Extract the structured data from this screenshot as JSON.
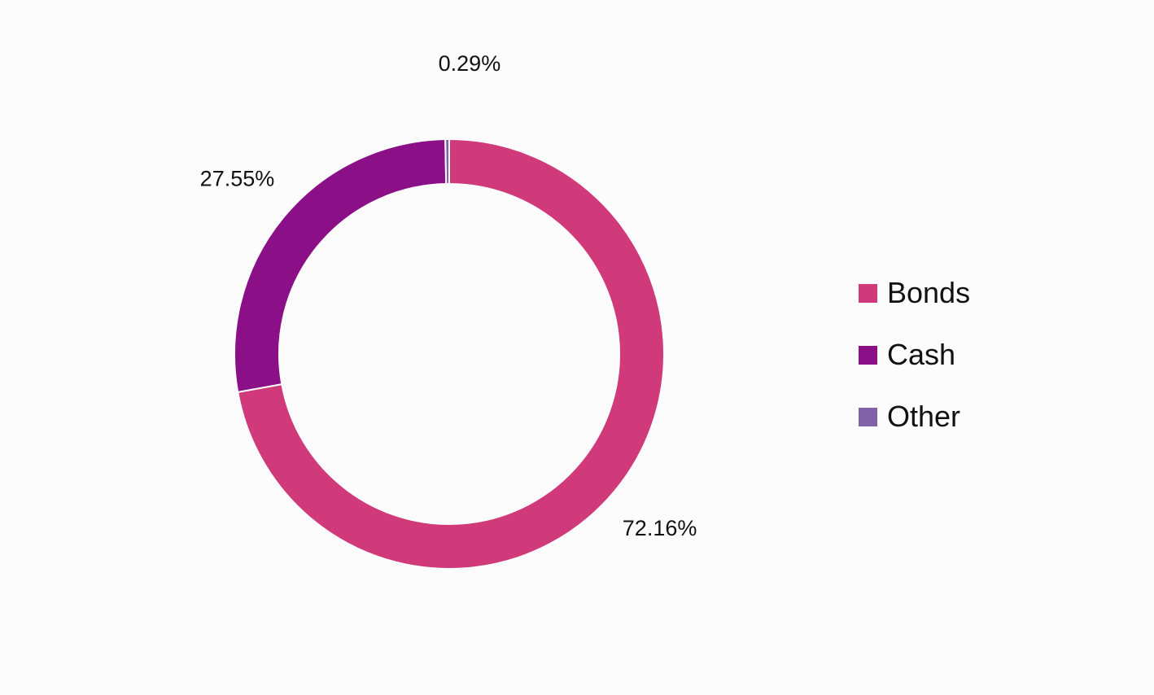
{
  "chart_data": {
    "type": "pie",
    "variant": "donut",
    "categories": [
      "Bonds",
      "Cash",
      "Other"
    ],
    "values": [
      72.16,
      27.55,
      0.29
    ],
    "data_labels": [
      "72.16%",
      "27.55%",
      "0.29%"
    ],
    "colors": [
      "#d0397a",
      "#8b1088",
      "#8062a8"
    ],
    "legend": {
      "placement": "right",
      "items": [
        {
          "label": "Bonds",
          "color": "#d0397a"
        },
        {
          "label": "Cash",
          "color": "#8b1088"
        },
        {
          "label": "Other",
          "color": "#8062a8"
        }
      ]
    },
    "title": ""
  }
}
